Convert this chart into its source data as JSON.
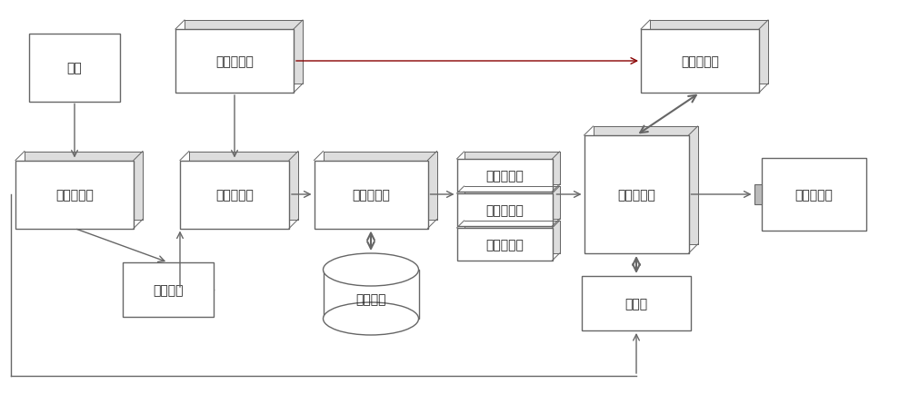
{
  "bg_color": "#ffffff",
  "line_color": "#666666",
  "font_size": 10,
  "nodes": {
    "changshu": {
      "label": "场叙"
    },
    "checker": {
      "label": "形式检查器"
    },
    "analyzer": {
      "label": "场叙分析器"
    },
    "xf_fuser": {
      "label": "形式融合器"
    },
    "scheduler": {
      "label": "融合调度器"
    },
    "protocol": {
      "label": "形式规约"
    },
    "pool": {
      "label": "融合器池"
    },
    "stack1": {
      "label": "场基融合器"
    },
    "stack2": {
      "label": "场基融合器"
    },
    "stack3": {
      "label": "场基融合器"
    },
    "engine": {
      "label": "场融合引擎"
    },
    "compound": {
      "label": "复合融合器"
    },
    "prebuilt": {
      "label": "预制场"
    },
    "processor": {
      "label": "信息处理机"
    }
  }
}
